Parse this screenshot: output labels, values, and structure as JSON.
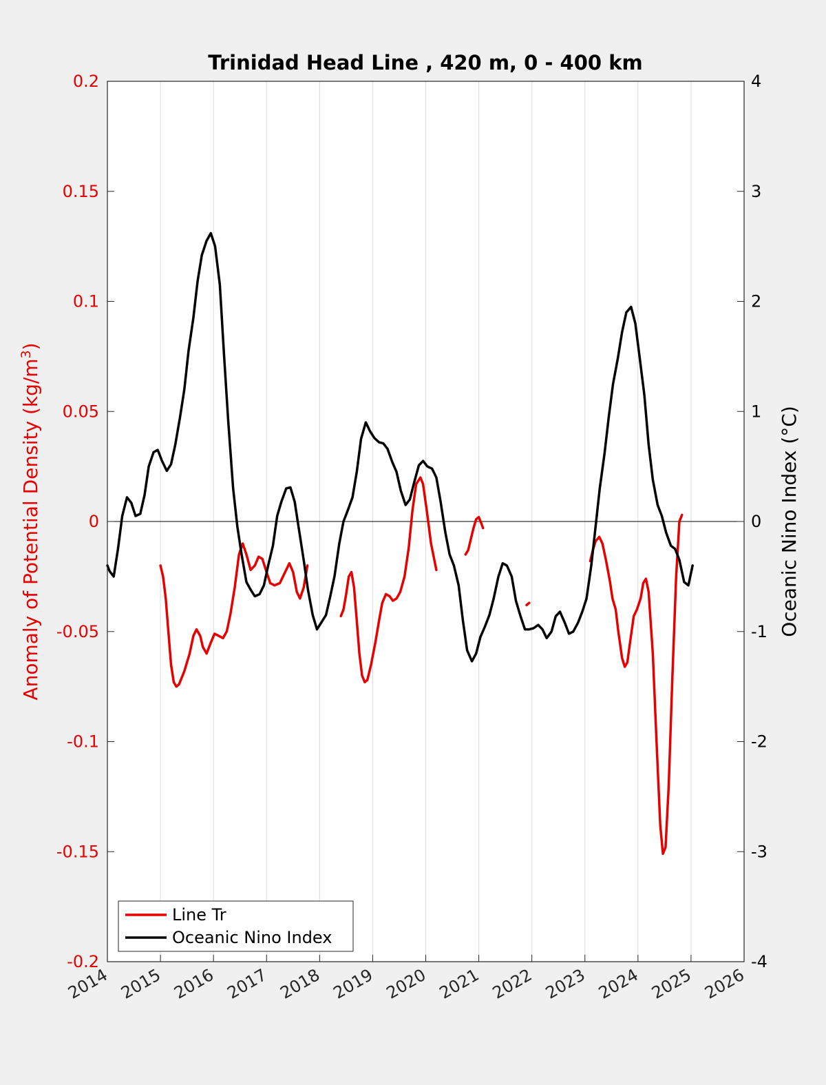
{
  "chart_data": {
    "type": "line",
    "title": "Trinidad Head Line , 420 m, 0 - 400 km",
    "ylabel_left": "Anomaly of Potential Density (kg/m",
    "ylabel_left_sup": "3",
    "ylabel_left_close": ")",
    "ylabel_right": "Oceanic Nino Index (°C)",
    "xlim": [
      2014,
      2026
    ],
    "ylim_left": [
      -0.2,
      0.2
    ],
    "ylim_right": [
      -4,
      4
    ],
    "x_ticks": [
      "2014",
      "2015",
      "2016",
      "2017",
      "2018",
      "2019",
      "2020",
      "2021",
      "2022",
      "2023",
      "2024",
      "2025",
      "2026"
    ],
    "y_ticks_left": [
      "0.2",
      "0.15",
      "0.1",
      "0.05",
      "0",
      "-0.05",
      "-0.1",
      "-0.15",
      "-0.2"
    ],
    "y_ticks_right": [
      "4",
      "3",
      "2",
      "1",
      "0",
      "-1",
      "-2",
      "-3",
      "-4"
    ],
    "grid": "vertical",
    "legend_position": "bottom-left",
    "colors": {
      "left_axis": "#e60000",
      "density": "#e60000",
      "oni": "#000000",
      "grid": "#dcdcdc",
      "background": "#f0f0f0",
      "plot_bg": "#ffffff"
    },
    "series": [
      {
        "name": "Line Tr",
        "axis": "left",
        "color": "#e60000",
        "segments": [
          [
            [
              2015.0,
              -0.02
            ],
            [
              2015.05,
              -0.025
            ],
            [
              2015.1,
              -0.035
            ],
            [
              2015.15,
              -0.05
            ],
            [
              2015.2,
              -0.065
            ],
            [
              2015.25,
              -0.073
            ],
            [
              2015.3,
              -0.075
            ],
            [
              2015.35,
              -0.074
            ],
            [
              2015.45,
              -0.068
            ],
            [
              2015.55,
              -0.06
            ],
            [
              2015.62,
              -0.052
            ],
            [
              2015.68,
              -0.049
            ],
            [
              2015.75,
              -0.052
            ],
            [
              2015.8,
              -0.057
            ],
            [
              2015.87,
              -0.06
            ],
            [
              2015.95,
              -0.055
            ],
            [
              2016.02,
              -0.051
            ],
            [
              2016.1,
              -0.052
            ],
            [
              2016.18,
              -0.053
            ],
            [
              2016.25,
              -0.05
            ],
            [
              2016.32,
              -0.042
            ],
            [
              2016.4,
              -0.03
            ],
            [
              2016.48,
              -0.015
            ],
            [
              2016.55,
              -0.01
            ],
            [
              2016.62,
              -0.015
            ],
            [
              2016.7,
              -0.022
            ],
            [
              2016.78,
              -0.02
            ],
            [
              2016.85,
              -0.016
            ],
            [
              2016.92,
              -0.017
            ],
            [
              2017.0,
              -0.023
            ],
            [
              2017.07,
              -0.028
            ],
            [
              2017.15,
              -0.029
            ],
            [
              2017.25,
              -0.028
            ],
            [
              2017.35,
              -0.023
            ],
            [
              2017.43,
              -0.019
            ],
            [
              2017.5,
              -0.023
            ],
            [
              2017.57,
              -0.032
            ],
            [
              2017.63,
              -0.035
            ],
            [
              2017.7,
              -0.03
            ],
            [
              2017.77,
              -0.02
            ]
          ],
          [
            [
              2018.4,
              -0.043
            ],
            [
              2018.45,
              -0.04
            ],
            [
              2018.5,
              -0.033
            ],
            [
              2018.55,
              -0.025
            ],
            [
              2018.6,
              -0.023
            ],
            [
              2018.65,
              -0.03
            ],
            [
              2018.7,
              -0.045
            ],
            [
              2018.75,
              -0.06
            ],
            [
              2018.8,
              -0.07
            ],
            [
              2018.85,
              -0.073
            ],
            [
              2018.9,
              -0.072
            ],
            [
              2018.97,
              -0.065
            ],
            [
              2019.05,
              -0.055
            ],
            [
              2019.12,
              -0.045
            ],
            [
              2019.18,
              -0.037
            ],
            [
              2019.25,
              -0.033
            ],
            [
              2019.32,
              -0.034
            ],
            [
              2019.38,
              -0.036
            ],
            [
              2019.45,
              -0.035
            ],
            [
              2019.52,
              -0.032
            ],
            [
              2019.6,
              -0.025
            ],
            [
              2019.68,
              -0.012
            ],
            [
              2019.75,
              0.005
            ],
            [
              2019.82,
              0.017
            ],
            [
              2019.9,
              0.02
            ],
            [
              2019.95,
              0.017
            ],
            [
              2020.02,
              0.005
            ],
            [
              2020.1,
              -0.01
            ],
            [
              2020.2,
              -0.022
            ]
          ],
          [
            [
              2020.75,
              -0.015
            ],
            [
              2020.8,
              -0.013
            ],
            [
              2020.85,
              -0.008
            ],
            [
              2020.9,
              -0.003
            ],
            [
              2020.95,
              0.001
            ],
            [
              2021.0,
              0.002
            ],
            [
              2021.05,
              -0.001
            ],
            [
              2021.08,
              -0.003
            ]
          ],
          [
            [
              2021.9,
              -0.038
            ],
            [
              2021.95,
              -0.037
            ]
          ],
          [
            [
              2023.1,
              -0.018
            ],
            [
              2023.15,
              -0.013
            ],
            [
              2023.2,
              -0.009
            ],
            [
              2023.27,
              -0.007
            ],
            [
              2023.33,
              -0.01
            ],
            [
              2023.4,
              -0.018
            ],
            [
              2023.47,
              -0.027
            ],
            [
              2023.52,
              -0.035
            ],
            [
              2023.58,
              -0.04
            ],
            [
              2023.63,
              -0.05
            ],
            [
              2023.7,
              -0.062
            ],
            [
              2023.75,
              -0.066
            ],
            [
              2023.8,
              -0.064
            ],
            [
              2023.85,
              -0.055
            ],
            [
              2023.92,
              -0.043
            ],
            [
              2023.98,
              -0.04
            ],
            [
              2024.05,
              -0.035
            ],
            [
              2024.1,
              -0.028
            ],
            [
              2024.15,
              -0.026
            ],
            [
              2024.2,
              -0.032
            ],
            [
              2024.28,
              -0.06
            ],
            [
              2024.35,
              -0.1
            ],
            [
              2024.42,
              -0.138
            ],
            [
              2024.47,
              -0.151
            ],
            [
              2024.52,
              -0.148
            ],
            [
              2024.58,
              -0.12
            ],
            [
              2024.65,
              -0.07
            ],
            [
              2024.72,
              -0.025
            ],
            [
              2024.78,
              0.0
            ],
            [
              2024.83,
              0.003
            ]
          ]
        ]
      },
      {
        "name": "Oceanic Nino Index",
        "axis": "right",
        "color": "#000000",
        "segments": [
          [
            [
              2014.0,
              -0.4
            ],
            [
              2014.04,
              -0.45
            ],
            [
              2014.12,
              -0.5
            ],
            [
              2014.2,
              -0.25
            ],
            [
              2014.28,
              0.05
            ],
            [
              2014.37,
              0.22
            ],
            [
              2014.45,
              0.17
            ],
            [
              2014.53,
              0.05
            ],
            [
              2014.62,
              0.07
            ],
            [
              2014.7,
              0.24
            ],
            [
              2014.78,
              0.5
            ],
            [
              2014.87,
              0.63
            ],
            [
              2014.95,
              0.65
            ],
            [
              2015.03,
              0.55
            ],
            [
              2015.12,
              0.46
            ],
            [
              2015.2,
              0.52
            ],
            [
              2015.28,
              0.7
            ],
            [
              2015.37,
              0.95
            ],
            [
              2015.45,
              1.2
            ],
            [
              2015.53,
              1.55
            ],
            [
              2015.62,
              1.85
            ],
            [
              2015.7,
              2.18
            ],
            [
              2015.78,
              2.42
            ],
            [
              2015.87,
              2.55
            ],
            [
              2015.95,
              2.62
            ],
            [
              2016.03,
              2.5
            ],
            [
              2016.12,
              2.15
            ],
            [
              2016.2,
              1.5
            ],
            [
              2016.28,
              0.9
            ],
            [
              2016.37,
              0.3
            ],
            [
              2016.45,
              -0.05
            ],
            [
              2016.53,
              -0.3
            ],
            [
              2016.62,
              -0.55
            ],
            [
              2016.7,
              -0.62
            ],
            [
              2016.78,
              -0.68
            ],
            [
              2016.87,
              -0.66
            ],
            [
              2016.95,
              -0.58
            ],
            [
              2017.03,
              -0.4
            ],
            [
              2017.12,
              -0.22
            ],
            [
              2017.2,
              0.05
            ],
            [
              2017.28,
              0.18
            ],
            [
              2017.37,
              0.3
            ],
            [
              2017.45,
              0.31
            ],
            [
              2017.53,
              0.18
            ],
            [
              2017.62,
              -0.1
            ],
            [
              2017.7,
              -0.35
            ],
            [
              2017.78,
              -0.62
            ],
            [
              2017.87,
              -0.85
            ],
            [
              2017.95,
              -0.98
            ],
            [
              2018.03,
              -0.92
            ],
            [
              2018.12,
              -0.85
            ],
            [
              2018.2,
              -0.68
            ],
            [
              2018.28,
              -0.5
            ],
            [
              2018.37,
              -0.2
            ],
            [
              2018.45,
              0.0
            ],
            [
              2018.53,
              0.1
            ],
            [
              2018.62,
              0.22
            ],
            [
              2018.7,
              0.45
            ],
            [
              2018.78,
              0.75
            ],
            [
              2018.87,
              0.9
            ],
            [
              2018.95,
              0.82
            ],
            [
              2019.03,
              0.76
            ],
            [
              2019.12,
              0.72
            ],
            [
              2019.2,
              0.71
            ],
            [
              2019.28,
              0.66
            ],
            [
              2019.37,
              0.54
            ],
            [
              2019.45,
              0.45
            ],
            [
              2019.53,
              0.28
            ],
            [
              2019.62,
              0.15
            ],
            [
              2019.7,
              0.2
            ],
            [
              2019.78,
              0.35
            ],
            [
              2019.87,
              0.51
            ],
            [
              2019.95,
              0.55
            ],
            [
              2020.03,
              0.5
            ],
            [
              2020.12,
              0.48
            ],
            [
              2020.2,
              0.4
            ],
            [
              2020.28,
              0.18
            ],
            [
              2020.37,
              -0.1
            ],
            [
              2020.45,
              -0.3
            ],
            [
              2020.53,
              -0.4
            ],
            [
              2020.62,
              -0.58
            ],
            [
              2020.7,
              -0.9
            ],
            [
              2020.78,
              -1.17
            ],
            [
              2020.87,
              -1.27
            ],
            [
              2020.95,
              -1.2
            ],
            [
              2021.03,
              -1.05
            ],
            [
              2021.12,
              -0.95
            ],
            [
              2021.2,
              -0.85
            ],
            [
              2021.28,
              -0.7
            ],
            [
              2021.37,
              -0.5
            ],
            [
              2021.45,
              -0.38
            ],
            [
              2021.53,
              -0.4
            ],
            [
              2021.62,
              -0.5
            ],
            [
              2021.7,
              -0.72
            ],
            [
              2021.78,
              -0.85
            ],
            [
              2021.87,
              -0.98
            ],
            [
              2021.95,
              -0.98
            ],
            [
              2022.03,
              -0.97
            ],
            [
              2022.12,
              -0.94
            ],
            [
              2022.2,
              -0.98
            ],
            [
              2022.28,
              -1.06
            ],
            [
              2022.37,
              -1.0
            ],
            [
              2022.45,
              -0.86
            ],
            [
              2022.53,
              -0.82
            ],
            [
              2022.62,
              -0.92
            ],
            [
              2022.7,
              -1.02
            ],
            [
              2022.78,
              -1.0
            ],
            [
              2022.87,
              -0.92
            ],
            [
              2022.95,
              -0.82
            ],
            [
              2023.03,
              -0.7
            ],
            [
              2023.12,
              -0.4
            ],
            [
              2023.2,
              -0.05
            ],
            [
              2023.28,
              0.3
            ],
            [
              2023.37,
              0.62
            ],
            [
              2023.45,
              0.95
            ],
            [
              2023.53,
              1.25
            ],
            [
              2023.62,
              1.48
            ],
            [
              2023.7,
              1.72
            ],
            [
              2023.78,
              1.9
            ],
            [
              2023.87,
              1.95
            ],
            [
              2023.95,
              1.8
            ],
            [
              2024.03,
              1.5
            ],
            [
              2024.12,
              1.15
            ],
            [
              2024.2,
              0.7
            ],
            [
              2024.28,
              0.38
            ],
            [
              2024.37,
              0.15
            ],
            [
              2024.45,
              0.05
            ],
            [
              2024.53,
              -0.1
            ],
            [
              2024.62,
              -0.22
            ],
            [
              2024.7,
              -0.25
            ],
            [
              2024.78,
              -0.35
            ],
            [
              2024.87,
              -0.55
            ],
            [
              2024.95,
              -0.58
            ],
            [
              2025.03,
              -0.4
            ]
          ]
        ]
      }
    ]
  }
}
